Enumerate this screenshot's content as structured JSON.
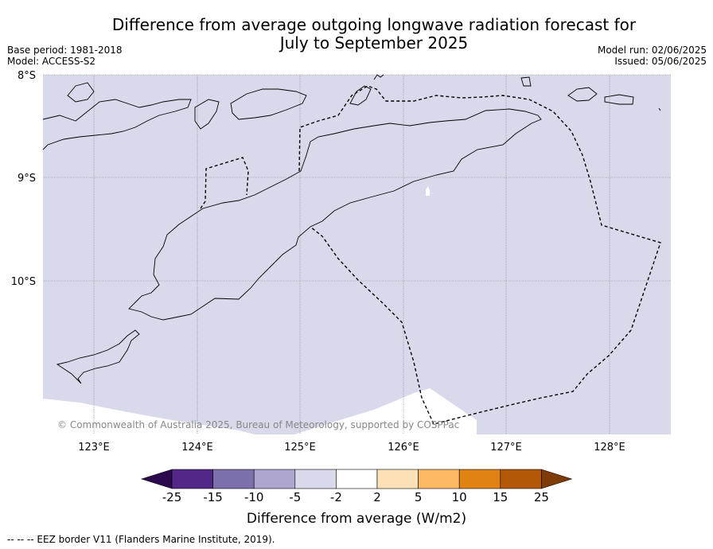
{
  "title_line1": "Difference from average outgoing longwave radiation forecast for",
  "title_line2": "July to September 2025",
  "base_period": "Base period: 1981-2018",
  "model": "Model: ACCESS-S2",
  "model_run": "Model run: 02/06/2025",
  "issued": "Issued: 05/06/2025",
  "copyright": "© Commonwealth of Australia 2025, Bureau of Meteorology, supported by COSPPac",
  "lat_labels": [
    "8°S",
    "9°S",
    "10°S"
  ],
  "lon_labels": [
    "123°E",
    "124°E",
    "125°E",
    "126°E",
    "127°E",
    "128°E"
  ],
  "colorbar": {
    "label": "Difference from average (W/m2)",
    "ticks": [
      "-25",
      "-15",
      "-10",
      "-5",
      "-2",
      "2",
      "5",
      "10",
      "15",
      "25"
    ],
    "colors": [
      "#2d0a4e",
      "#532787",
      "#7d6fab",
      "#afa6cf",
      "#d8d9ea",
      "#ffffff",
      "#fee0b6",
      "#fdb863",
      "#e08214",
      "#b35806",
      "#7f3b08"
    ]
  },
  "map_fill_color": "#d8d9ea",
  "footer": "--  --  -- EEZ border V11 (Flanders Marine Institute, 2019)."
}
